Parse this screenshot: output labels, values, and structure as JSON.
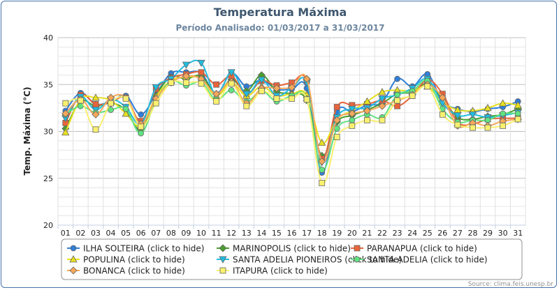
{
  "chart_data": {
    "type": "line",
    "title": "Temperatura Máxima",
    "subtitle": "Período Analisado: 01/03/2017 a 31/03/2017",
    "ylabel": "Temp. Máxima (°C)",
    "xlabel": "",
    "ylim": [
      20,
      40
    ],
    "yticks": [
      20,
      25,
      30,
      35,
      40
    ],
    "categories": [
      "01",
      "02",
      "03",
      "04",
      "05",
      "06",
      "07",
      "08",
      "09",
      "10",
      "11",
      "12",
      "13",
      "14",
      "15",
      "16",
      "17",
      "18",
      "19",
      "20",
      "21",
      "22",
      "23",
      "24",
      "25",
      "26",
      "27",
      "28",
      "29",
      "30",
      "31"
    ],
    "grid": true,
    "legend_position": "bottom",
    "credit": "Source: clima.feis.unesp.br",
    "series": [
      {
        "name": "ILHA SOLTEIRA (click to hide)",
        "color": "#2f7ed8",
        "marker": "circle",
        "values": [
          32.2,
          34.1,
          32.9,
          33.2,
          33.8,
          31.8,
          34.0,
          36.2,
          36.3,
          36.2,
          34.0,
          36.2,
          34.8,
          35.5,
          34.5,
          34.5,
          34.6,
          25.6,
          32.1,
          32.1,
          32.8,
          33.1,
          35.6,
          34.8,
          36.1,
          33.2,
          32.4,
          32.1,
          32.4,
          32.6,
          33.2
        ]
      },
      {
        "name": "MARINOPOLIS (click to hide)",
        "color": "#4a9e2e",
        "marker": "diamond",
        "values": [
          30.3,
          33.2,
          32.7,
          33.0,
          32.3,
          30.2,
          33.8,
          35.8,
          35.6,
          35.9,
          34.0,
          35.5,
          34.3,
          36.0,
          34.3,
          34.0,
          33.3,
          27.4,
          31.0,
          31.7,
          32.3,
          33.0,
          34.0,
          34.2,
          35.1,
          33.5,
          31.5,
          31.3,
          31.6,
          31.8,
          32.4
        ]
      },
      {
        "name": "PARANAPUA (click to hide)",
        "color": "#e9643a",
        "marker": "square",
        "values": [
          30.9,
          33.9,
          32.9,
          33.1,
          33.6,
          31.1,
          34.5,
          35.7,
          36.1,
          36.3,
          35.0,
          35.9,
          34.0,
          35.4,
          34.9,
          35.2,
          35.4,
          27.1,
          32.6,
          32.8,
          32.9,
          33.3,
          32.7,
          33.8,
          35.5,
          34.0,
          31.0,
          30.8,
          31.3,
          31.4,
          31.4
        ]
      },
      {
        "name": "POPULINA (click to hide)",
        "color": "#e8e020",
        "marker": "triangle",
        "values": [
          29.9,
          33.4,
          33.6,
          33.3,
          31.9,
          30.6,
          33.7,
          35.4,
          35.8,
          35.6,
          33.8,
          35.2,
          33.8,
          34.8,
          33.8,
          34.0,
          33.9,
          28.8,
          31.3,
          32.2,
          33.2,
          34.2,
          34.4,
          34.3,
          34.8,
          33.1,
          32.3,
          32.2,
          32.5,
          33.0,
          32.8
        ]
      },
      {
        "name": "SANTA ADELIA PIONEIROS (click to hide)",
        "color": "#22bcdf",
        "marker": "triangle-down",
        "values": [
          31.4,
          33.7,
          32.3,
          33.4,
          32.6,
          30.8,
          34.7,
          35.6,
          37.1,
          37.3,
          33.9,
          36.3,
          34.0,
          35.5,
          33.8,
          34.6,
          35.2,
          26.7,
          31.5,
          32.4,
          32.5,
          33.5,
          33.9,
          34.6,
          35.6,
          33.0,
          31.7,
          31.8,
          31.5,
          31.7,
          32.0
        ]
      },
      {
        "name": "SANTA ADELIA (click to hide)",
        "color": "#61e381",
        "marker": "circle",
        "values": [
          31.8,
          32.7,
          32.0,
          32.3,
          32.4,
          29.8,
          33.3,
          35.3,
          34.9,
          35.2,
          33.4,
          34.4,
          33.2,
          34.3,
          33.2,
          33.8,
          33.5,
          25.9,
          30.3,
          31.2,
          31.8,
          31.5,
          33.9,
          34.3,
          35.4,
          32.4,
          31.0,
          31.2,
          31.2,
          31.9,
          31.9
        ]
      },
      {
        "name": "BONANCA (click to hide)",
        "color": "#f6a85a",
        "marker": "diamond",
        "values": [
          31.9,
          33.4,
          31.8,
          33.6,
          33.6,
          30.8,
          33.5,
          35.2,
          35.9,
          35.6,
          34.0,
          35.3,
          33.0,
          34.6,
          34.6,
          34.7,
          35.6,
          26.8,
          31.2,
          31.9,
          32.2,
          32.7,
          33.3,
          33.9,
          35.0,
          33.6,
          30.6,
          30.9,
          30.6,
          31.1,
          31.3
        ]
      },
      {
        "name": "ITAPURA (click to hide)",
        "color": "#f9f070",
        "marker": "square",
        "values": [
          33.0,
          33.3,
          30.2,
          33.0,
          33.5,
          30.5,
          33.0,
          35.2,
          35.2,
          35.1,
          33.2,
          35.1,
          32.7,
          34.3,
          33.5,
          33.5,
          33.4,
          24.5,
          29.4,
          30.6,
          31.2,
          31.2,
          33.3,
          33.8,
          34.8,
          31.8,
          30.7,
          30.4,
          30.4,
          30.6,
          31.3
        ]
      }
    ]
  }
}
